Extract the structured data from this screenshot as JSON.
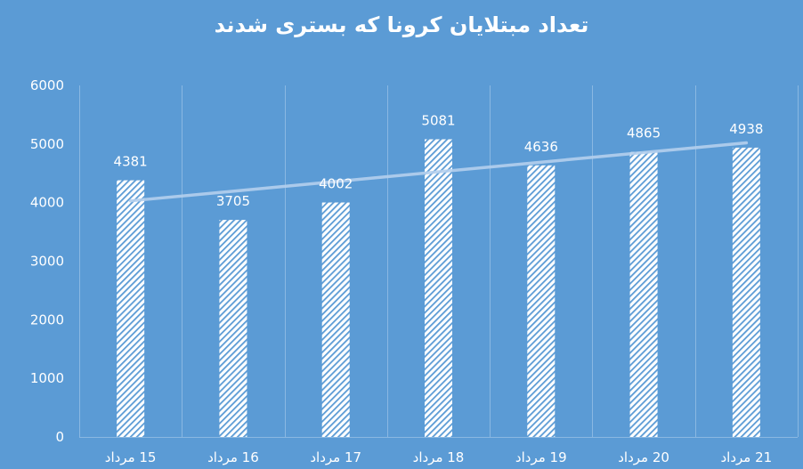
{
  "title": "تعداد مبتلایان کرونا که بستری شدند",
  "colors": {
    "background": "#5b9bd5",
    "bar_fill": "#ffffff",
    "bar_hatch": "#5b9bd5",
    "gridline": "#8ab8e2",
    "trendline": "#b4d0ee",
    "text": "#ffffff"
  },
  "chart_data": {
    "type": "bar",
    "title": "تعداد مبتلایان کرونا که بستری شدند",
    "xlabel": "",
    "ylabel": "",
    "categories": [
      "15 مرداد",
      "16 مرداد",
      "17 مرداد",
      "18 مرداد",
      "19 مرداد",
      "20 مرداد",
      "21 مرداد"
    ],
    "values": [
      4381,
      3705,
      4002,
      5081,
      4636,
      4865,
      4938
    ],
    "data_labels": [
      "4381",
      "3705",
      "4002",
      "5081",
      "4636",
      "4865",
      "4938"
    ],
    "ylim": [
      0,
      6000
    ],
    "yticks": [
      0,
      1000,
      2000,
      3000,
      4000,
      5000,
      6000
    ],
    "ytick_labels": [
      "0",
      "1000",
      "2000",
      "3000",
      "4000",
      "5000",
      "6000"
    ],
    "grid": {
      "vertical": true,
      "horizontal": false
    },
    "bar_style": "diagonal hatch (white with blue stripes)",
    "trendline": {
      "type": "linear",
      "start_value": 4030,
      "end_value": 5020
    },
    "legend": null
  }
}
